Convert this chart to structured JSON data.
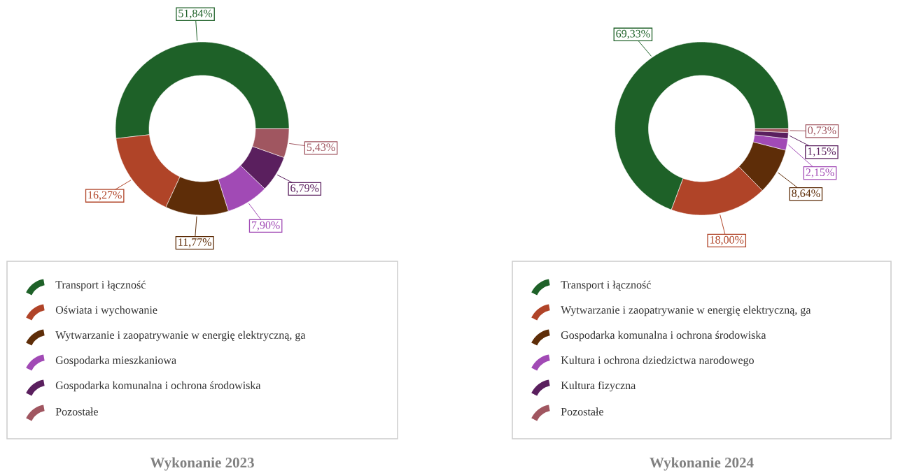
{
  "chart_data": [
    {
      "type": "donut",
      "title": "Wykonanie 2023",
      "legend": "bottom",
      "categories": [
        "Transport i łączność",
        "Oświata i wychowanie",
        "Wytwarzanie i zaopatrywanie w energię elektryczną, ga",
        "Gospodarka mieszkaniowa",
        "Gospodarka komunalna i ochrona środowiska",
        "Pozostałe"
      ],
      "values": [
        51.84,
        16.27,
        11.77,
        7.9,
        6.79,
        5.43
      ],
      "value_labels": [
        "51,84%",
        "16,27%",
        "11,77%",
        "7,90%",
        "6,79%",
        "5,43%"
      ],
      "colors": [
        "#1e6128",
        "#b04428",
        "#5e2d08",
        "#a14ab5",
        "#5a1f5e",
        "#a05660"
      ]
    },
    {
      "type": "donut",
      "title": "Wykonanie 2024",
      "legend": "bottom",
      "categories": [
        "Transport i łączność",
        "Wytwarzanie i zaopatrywanie w energię elektryczną, ga",
        "Gospodarka komunalna i ochrona środowiska",
        "Kultura i ochrona dziedzictwa narodowego",
        "Kultura fizyczna",
        "Pozostałe"
      ],
      "values": [
        69.33,
        18.0,
        8.64,
        2.15,
        1.15,
        0.73
      ],
      "value_labels": [
        "69,33%",
        "18,00%",
        "8,64%",
        "2,15%",
        "1,15%",
        "0,73%"
      ],
      "colors": [
        "#1e6128",
        "#b04428",
        "#5e2d08",
        "#a14ab5",
        "#5a1f5e",
        "#a05660"
      ]
    }
  ]
}
